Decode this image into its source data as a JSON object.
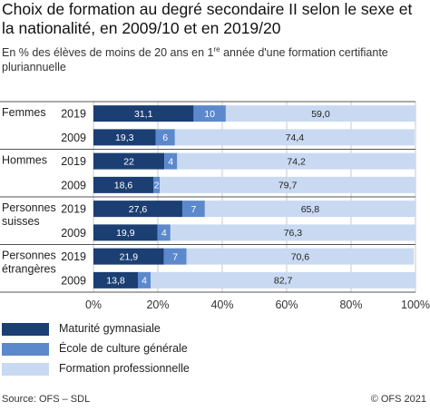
{
  "header": {
    "title": "Choix de formation au degré secondaire II selon le sexe et la nationalité, en 2009/10 et en 2019/20",
    "subtitle": "En % des élèves de moins de 20 ans en 1re année d'une formation certifiante pluriannuelle"
  },
  "footer": {
    "source": "Source: OFS – SDL",
    "copyright": "© OFS 2021"
  },
  "colors": {
    "maturite": "#1c3f73",
    "culture": "#5c89cc",
    "professionnelle": "#c9d9f2",
    "divider": "#555555",
    "grid": "#c8c8c8"
  },
  "chart_data": {
    "type": "bar",
    "orientation": "horizontal",
    "stacked": true,
    "xlim": [
      0,
      100
    ],
    "x_tick_labels": [
      "0%",
      "20%",
      "40%",
      "60%",
      "80%",
      "100%"
    ],
    "groups": [
      {
        "label_lines": [
          "Femmes"
        ],
        "rows": [
          {
            "year": "2019",
            "values": [
              31.1,
              10,
              59.0
            ],
            "labels": [
              "31,1",
              "10",
              "59,0"
            ]
          },
          {
            "year": "2009",
            "values": [
              19.3,
              6,
              74.4
            ],
            "labels": [
              "19,3",
              "6",
              "74,4"
            ]
          }
        ]
      },
      {
        "label_lines": [
          "Hommes"
        ],
        "rows": [
          {
            "year": "2019",
            "values": [
              22,
              4,
              74.2
            ],
            "labels": [
              "22",
              "4",
              "74,2"
            ]
          },
          {
            "year": "2009",
            "values": [
              18.6,
              2,
              79.7
            ],
            "labels": [
              "18,6",
              "2",
              "79,7"
            ]
          }
        ]
      },
      {
        "label_lines": [
          "Personnes",
          "suisses"
        ],
        "rows": [
          {
            "year": "2019",
            "values": [
              27.6,
              7,
              65.8
            ],
            "labels": [
              "27,6",
              "7",
              "65,8"
            ]
          },
          {
            "year": "2009",
            "values": [
              19.9,
              4,
              76.3
            ],
            "labels": [
              "19,9",
              "4",
              "76,3"
            ]
          }
        ]
      },
      {
        "label_lines": [
          "Personnes",
          "étrangères"
        ],
        "rows": [
          {
            "year": "2019",
            "values": [
              21.9,
              7,
              70.6
            ],
            "labels": [
              "21,9",
              "7",
              "70,6"
            ]
          },
          {
            "year": "2009",
            "values": [
              13.8,
              4,
              82.7
            ],
            "labels": [
              "13,8",
              "4",
              "82,7"
            ]
          }
        ]
      }
    ],
    "series": [
      {
        "name": "Maturité gymnasiale",
        "color": "#1c3f73"
      },
      {
        "name": "École de culture générale",
        "color": "#5c89cc"
      },
      {
        "name": "Formation professionnelle",
        "color": "#c9d9f2"
      }
    ],
    "grid": true,
    "legend_position": "bottom-left"
  }
}
